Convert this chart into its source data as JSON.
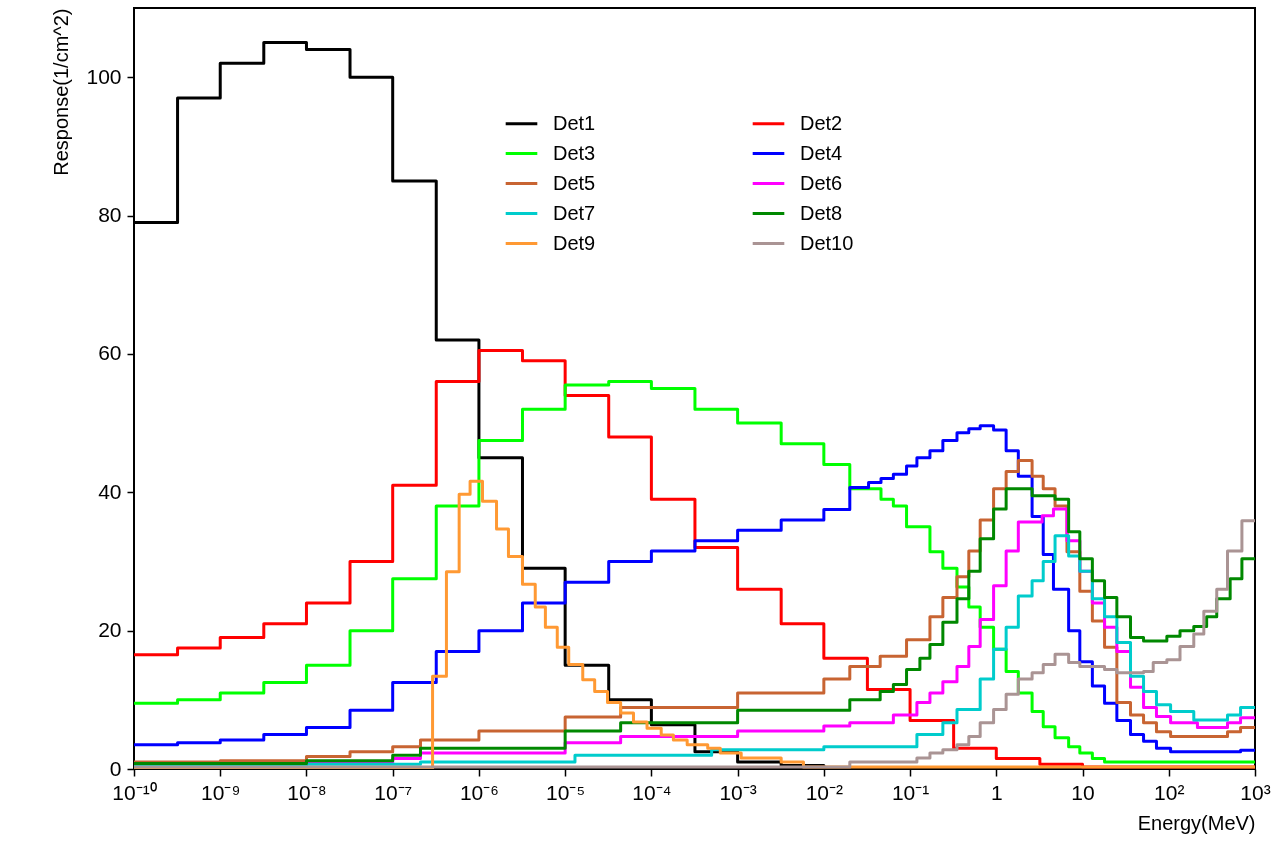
{
  "chart_data": {
    "type": "step",
    "xlabel": "Energy(MeV)",
    "ylabel": "Response(1/cm^2)",
    "log": "x",
    "grid": false,
    "legend": "top",
    "line_style": "solid",
    "xlim": [
      1e-10,
      1000
    ],
    "ylim": [
      0,
      110
    ],
    "xticks": [
      {
        "value": 1e-10,
        "label": "10⁻¹⁰"
      },
      {
        "value": 1e-09,
        "label": "10⁻⁹"
      },
      {
        "value": 1e-08,
        "label": "10⁻⁸"
      },
      {
        "value": 1e-07,
        "label": "10⁻⁷"
      },
      {
        "value": 1e-06,
        "label": "10⁻⁶"
      },
      {
        "value": 1e-05,
        "label": "10⁻⁵"
      },
      {
        "value": 0.0001,
        "label": "10⁻⁴"
      },
      {
        "value": 0.001,
        "label": "10⁻³"
      },
      {
        "value": 0.01,
        "label": "10⁻²"
      },
      {
        "value": 0.1,
        "label": "10⁻¹"
      },
      1,
      10,
      {
        "value": 100,
        "label": "10²"
      },
      {
        "value": 1000,
        "label": "10³"
      }
    ],
    "yticks": [
      0,
      20,
      40,
      60,
      80,
      100
    ],
    "series": [
      {
        "name": "Det1",
        "color": "#000000",
        "x": [
          1e-10,
          3.2e-10,
          1e-09,
          3.2e-09,
          1e-08,
          3.2e-08,
          1e-07,
          3.2e-07,
          1e-06,
          3.2e-06,
          1e-05,
          3.2e-05,
          0.0001,
          0.00032,
          0.001,
          0.0032,
          0.01,
          1000
        ],
        "values": [
          79,
          97,
          102,
          105,
          104,
          100,
          85,
          62,
          45,
          29,
          15,
          10,
          6.4,
          2.5,
          1,
          0.5,
          0.2,
          0.2
        ]
      },
      {
        "name": "Det2",
        "color": "#ff0000",
        "x": [
          1e-10,
          3.2e-10,
          1e-09,
          3.2e-09,
          1e-08,
          3.2e-08,
          1e-07,
          3.2e-07,
          1e-06,
          3.2e-06,
          1e-05,
          3.2e-05,
          0.0001,
          0.00032,
          0.001,
          0.0032,
          0.01,
          0.032,
          0.1,
          0.32,
          1,
          3.2,
          10,
          1000
        ],
        "values": [
          16.5,
          17.5,
          19,
          21,
          24,
          30,
          41,
          56,
          60.5,
          59,
          54,
          48,
          39,
          32,
          26,
          21,
          16,
          11.5,
          7,
          3,
          1.5,
          0.7,
          0.3,
          0.3
        ]
      },
      {
        "name": "Det3",
        "color": "#00ff00",
        "x": [
          1e-10,
          3.2e-10,
          1e-09,
          3.2e-09,
          1e-08,
          3.2e-08,
          1e-07,
          3.2e-07,
          1e-06,
          3.2e-06,
          1e-05,
          3.2e-05,
          0.0001,
          0.00032,
          0.001,
          0.0032,
          0.01,
          0.02,
          0.046,
          0.064,
          0.091,
          0.17,
          0.24,
          0.35,
          0.48,
          0.65,
          0.93,
          1.3,
          1.8,
          2.6,
          3.5,
          4.8,
          6.9,
          9.3,
          13,
          18,
          1000
        ],
        "values": [
          9.5,
          10,
          11,
          12.5,
          15,
          20,
          27.5,
          38,
          47.5,
          52,
          55.5,
          56,
          55,
          52,
          50,
          47,
          44,
          40.5,
          39,
          38,
          35,
          31.4,
          29,
          26.3,
          23.4,
          20.5,
          17.3,
          14.1,
          11,
          8.3,
          6.1,
          4.5,
          3.2,
          2.3,
          1.5,
          1,
          1
        ]
      },
      {
        "name": "Det4",
        "color": "#0000ff",
        "x": [
          1e-10,
          3.2e-10,
          1e-09,
          3.2e-09,
          1e-08,
          3.2e-08,
          1e-07,
          3.2e-07,
          1e-06,
          3.2e-06,
          1e-05,
          3.2e-05,
          0.0001,
          0.00032,
          0.001,
          0.0032,
          0.01,
          0.02,
          0.033,
          0.046,
          0.064,
          0.091,
          0.12,
          0.17,
          0.24,
          0.35,
          0.48,
          0.65,
          0.93,
          1.3,
          1.8,
          2.6,
          3.5,
          4.6,
          6.9,
          9.3,
          13,
          18,
          25,
          36,
          51,
          72,
          105,
          680,
          1000
        ],
        "values": [
          3.5,
          3.8,
          4.2,
          5,
          6,
          8.5,
          12.5,
          17,
          20,
          24,
          27,
          30,
          31.5,
          33,
          34.5,
          36,
          37.5,
          40.7,
          41.4,
          42,
          42.6,
          43.8,
          45,
          46,
          47.5,
          48.6,
          49.2,
          49.6,
          49,
          46,
          42.3,
          36.5,
          31,
          26,
          20,
          15.5,
          12,
          9.5,
          7,
          5,
          4,
          3,
          2.5,
          2.7,
          2.7
        ]
      },
      {
        "name": "Det5",
        "color": "#c86432",
        "x": [
          1e-10,
          1e-09,
          1e-08,
          3.2e-08,
          1e-07,
          2.1e-07,
          1e-06,
          1e-05,
          4.4e-05,
          0.001,
          0.01,
          0.02,
          0.045,
          0.091,
          0.17,
          0.24,
          0.35,
          0.48,
          0.65,
          0.93,
          1.3,
          1.8,
          2.6,
          3.5,
          4.8,
          6.6,
          9.3,
          13,
          18,
          25,
          36,
          51,
          72,
          105,
          480,
          680,
          1000
        ],
        "values": [
          1,
          1.2,
          1.8,
          2.5,
          3.2,
          4.2,
          5.5,
          7.5,
          8.9,
          11,
          13,
          14.8,
          16.3,
          18.7,
          22,
          24.8,
          27.8,
          31.5,
          36,
          40.5,
          43,
          44.6,
          42.3,
          40.5,
          38,
          31.4,
          25.7,
          21.4,
          17.6,
          9.6,
          7.8,
          6.7,
          5.4,
          4.7,
          5.4,
          6,
          6
        ]
      },
      {
        "name": "Det6",
        "color": "#ff00ff",
        "x": [
          1e-10,
          1e-08,
          1e-07,
          2.1e-07,
          1e-05,
          4.4e-05,
          0.001,
          0.01,
          0.02,
          0.064,
          0.12,
          0.17,
          0.24,
          0.35,
          0.48,
          0.65,
          0.93,
          1.3,
          1.8,
          3.4,
          4.6,
          6.6,
          9.3,
          13,
          18,
          25,
          36,
          51,
          72,
          105,
          215,
          480,
          680,
          1000
        ],
        "values": [
          0.5,
          0.8,
          1.5,
          2.3,
          3.8,
          4.7,
          5.5,
          6.2,
          6.7,
          7.8,
          9.6,
          11,
          12.6,
          14.8,
          17.7,
          21.6,
          26.5,
          31.5,
          35.7,
          36.6,
          37.6,
          33,
          28.6,
          24,
          20.5,
          17,
          11.8,
          8.9,
          7.6,
          6.7,
          6,
          6.7,
          7.4,
          7.4
        ]
      },
      {
        "name": "Det7",
        "color": "#00cccc",
        "x": [
          1e-10,
          1e-08,
          2.1e-07,
          1.3e-05,
          0.0005,
          0.01,
          0.12,
          0.24,
          0.35,
          0.65,
          0.93,
          1.3,
          1.8,
          2.6,
          3.5,
          4.8,
          6.9,
          9.3,
          13,
          18,
          25,
          36,
          51,
          72,
          105,
          195,
          480,
          680,
          1000
        ],
        "values": [
          0.5,
          0.7,
          1,
          2,
          2.8,
          3.2,
          5,
          6.7,
          8.6,
          13,
          17.3,
          20.5,
          25,
          27.2,
          30,
          33.7,
          30.8,
          28.6,
          24.6,
          22,
          18.3,
          13.4,
          11.2,
          9.3,
          8.3,
          7.1,
          7.8,
          8.9,
          8.9
        ]
      },
      {
        "name": "Det8",
        "color": "#008800",
        "x": [
          1e-10,
          1e-08,
          1e-07,
          2.1e-07,
          1e-05,
          4.4e-05,
          0.001,
          0.02,
          0.045,
          0.064,
          0.091,
          0.13,
          0.17,
          0.24,
          0.35,
          0.48,
          0.65,
          0.93,
          1.3,
          2.6,
          4.8,
          6.9,
          9.3,
          13,
          18,
          25,
          36,
          51,
          95,
          135,
          195,
          275,
          360,
          515,
          705,
          1000
        ],
        "values": [
          0.8,
          1.2,
          2,
          3,
          5.5,
          6.7,
          8.5,
          10,
          11.2,
          12.2,
          14.4,
          16,
          18,
          21.2,
          24.6,
          28.6,
          33.3,
          37.6,
          40.5,
          39.5,
          39,
          34.3,
          30.4,
          27.2,
          24.8,
          22,
          19,
          18.5,
          19.2,
          20,
          20.6,
          22,
          24.6,
          27.5,
          30.4,
          30.4
        ]
      },
      {
        "name": "Det9",
        "color": "#ff9933",
        "x": [
          1e-10,
          2.9e-07,
          4.2e-07,
          5.9e-07,
          7.9e-07,
          1.1e-06,
          1.6e-06,
          2.2e-06,
          3.2e-06,
          4.5e-06,
          5.9e-06,
          8.1e-06,
          1.1e-05,
          1.6e-05,
          2.2e-05,
          3.1e-05,
          4.4e-05,
          6.2e-05,
          8.9e-05,
          0.00013,
          0.00018,
          0.00026,
          0.00045,
          0.00063,
          0.0011,
          0.0032,
          0.0058,
          1000
        ],
        "values": [
          0,
          13.4,
          28.5,
          39.7,
          41.6,
          38.7,
          34.7,
          30.7,
          26.7,
          23.4,
          20.5,
          17.6,
          15.1,
          12.9,
          11.2,
          9.6,
          8.1,
          6.8,
          5.9,
          4.9,
          4.2,
          3.5,
          3,
          2.3,
          1.6,
          1,
          0.3,
          0.3
        ]
      },
      {
        "name": "Det10",
        "color": "#aa9494",
        "x": [
          1e-10,
          0.02,
          0.12,
          0.17,
          0.24,
          0.35,
          0.48,
          0.65,
          0.93,
          1.3,
          1.8,
          2.6,
          3.5,
          4.8,
          6.9,
          9.3,
          18,
          25,
          51,
          66,
          95,
          135,
          195,
          255,
          360,
          480,
          705,
          1000
        ],
        "values": [
          0.3,
          1,
          1.6,
          2.3,
          2.8,
          3.5,
          4.7,
          6.7,
          8.6,
          10.8,
          13,
          13.9,
          15.1,
          16.6,
          15.4,
          14.8,
          14.4,
          13.9,
          14.1,
          15.4,
          15.8,
          17.7,
          19.5,
          22.8,
          26,
          31.5,
          35.9,
          35.9
        ]
      }
    ]
  }
}
